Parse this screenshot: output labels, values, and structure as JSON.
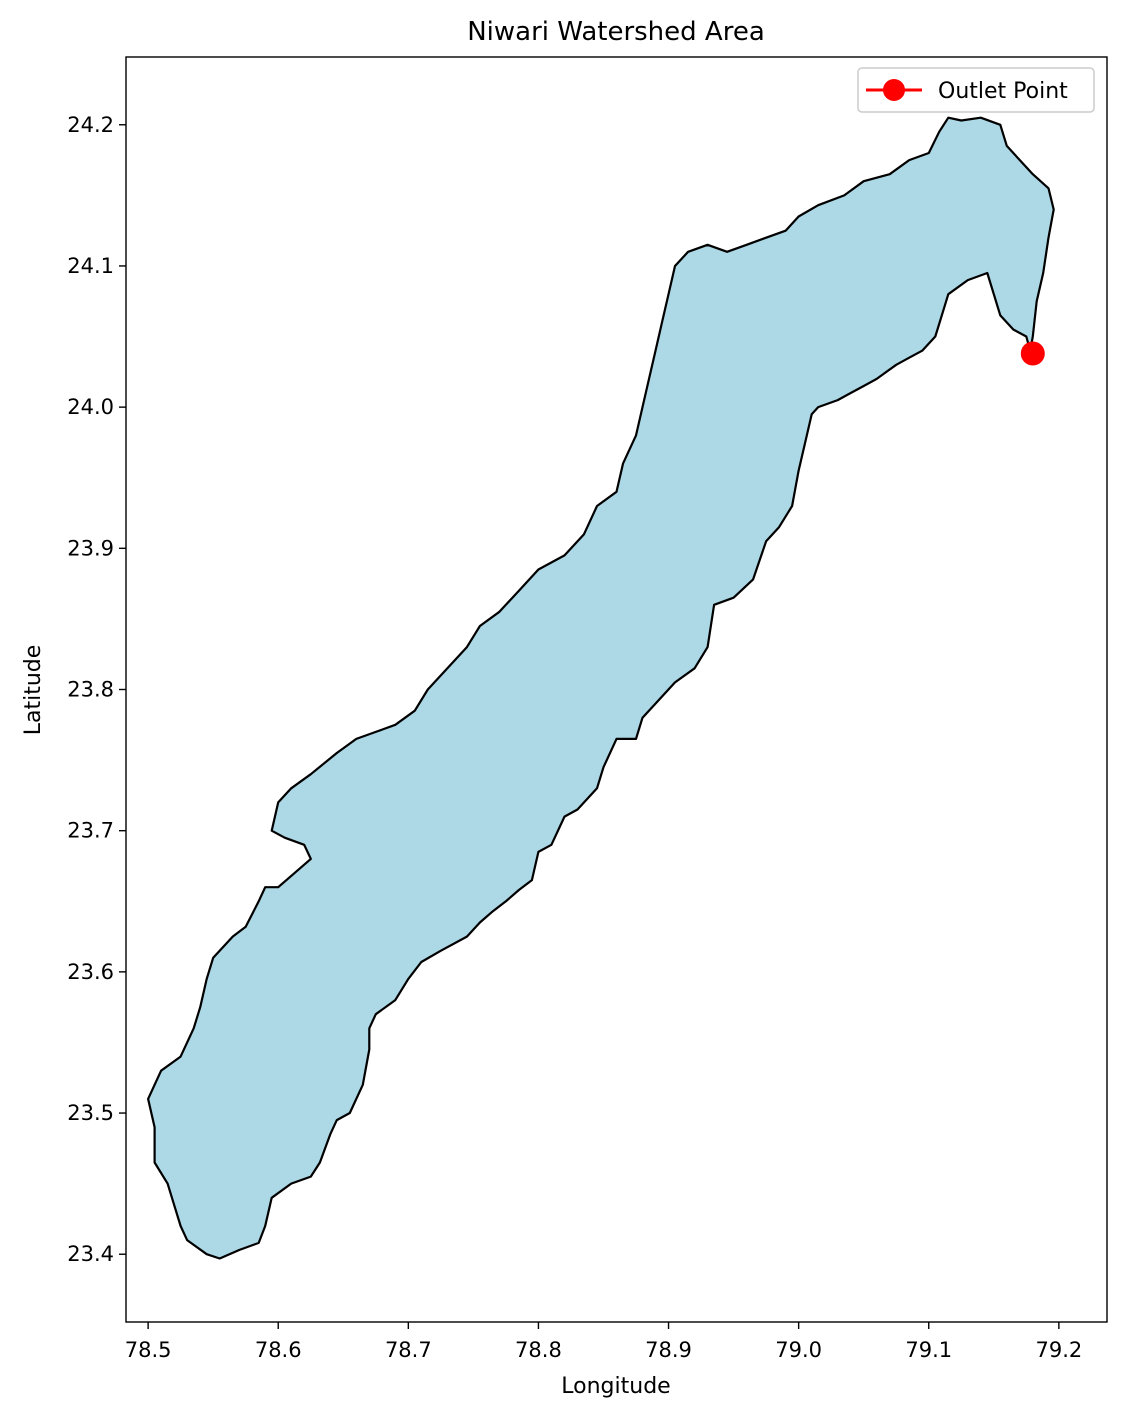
{
  "chart_data": {
    "type": "map",
    "title": "Niwari Watershed Area",
    "xlabel": "Longitude",
    "ylabel": "Latitude",
    "xlim": [
      78.483,
      79.237
    ],
    "ylim": [
      23.352,
      24.248
    ],
    "xticks": [
      78.5,
      78.6,
      78.7,
      78.8,
      78.9,
      79.0,
      79.1,
      79.2
    ],
    "xtick_labels": [
      "78.5",
      "78.6",
      "78.7",
      "78.8",
      "78.9",
      "79.0",
      "79.1",
      "79.2"
    ],
    "yticks": [
      23.4,
      23.5,
      23.6,
      23.7,
      23.8,
      23.9,
      24.0,
      24.1,
      24.2
    ],
    "ytick_labels": [
      "23.4",
      "23.5",
      "23.6",
      "23.7",
      "23.8",
      "23.9",
      "24.0",
      "24.1",
      "24.2"
    ],
    "grid": false,
    "legend_position": "upper right",
    "watershed": {
      "fill_color": "#add8e6",
      "edge_color": "#000000",
      "boundary": [
        [
          78.555,
          23.397
        ],
        [
          78.57,
          23.403
        ],
        [
          78.585,
          23.408
        ],
        [
          78.59,
          23.42
        ],
        [
          78.595,
          23.44
        ],
        [
          78.61,
          23.45
        ],
        [
          78.625,
          23.455
        ],
        [
          78.632,
          23.465
        ],
        [
          78.64,
          23.485
        ],
        [
          78.645,
          23.495
        ],
        [
          78.655,
          23.5
        ],
        [
          78.665,
          23.52
        ],
        [
          78.67,
          23.545
        ],
        [
          78.67,
          23.56
        ],
        [
          78.675,
          23.57
        ],
        [
          78.69,
          23.58
        ],
        [
          78.7,
          23.595
        ],
        [
          78.71,
          23.607
        ],
        [
          78.725,
          23.615
        ],
        [
          78.745,
          23.625
        ],
        [
          78.755,
          23.635
        ],
        [
          78.765,
          23.643
        ],
        [
          78.775,
          23.65
        ],
        [
          78.785,
          23.658
        ],
        [
          78.795,
          23.665
        ],
        [
          78.8,
          23.685
        ],
        [
          78.81,
          23.69
        ],
        [
          78.82,
          23.71
        ],
        [
          78.83,
          23.715
        ],
        [
          78.845,
          23.73
        ],
        [
          78.85,
          23.745
        ],
        [
          78.86,
          23.765
        ],
        [
          78.875,
          23.765
        ],
        [
          78.88,
          23.78
        ],
        [
          78.89,
          23.79
        ],
        [
          78.905,
          23.805
        ],
        [
          78.92,
          23.815
        ],
        [
          78.93,
          23.83
        ],
        [
          78.935,
          23.86
        ],
        [
          78.95,
          23.865
        ],
        [
          78.965,
          23.878
        ],
        [
          78.975,
          23.905
        ],
        [
          78.985,
          23.915
        ],
        [
          78.995,
          23.93
        ],
        [
          79.0,
          23.955
        ],
        [
          79.005,
          23.975
        ],
        [
          79.01,
          23.995
        ],
        [
          79.015,
          24.0
        ],
        [
          79.03,
          24.005
        ],
        [
          79.04,
          24.01
        ],
        [
          79.05,
          24.015
        ],
        [
          79.06,
          24.02
        ],
        [
          79.075,
          24.03
        ],
        [
          79.085,
          24.035
        ],
        [
          79.095,
          24.04
        ],
        [
          79.105,
          24.05
        ],
        [
          79.11,
          24.065
        ],
        [
          79.115,
          24.08
        ],
        [
          79.13,
          24.09
        ],
        [
          79.145,
          24.095
        ],
        [
          79.15,
          24.08
        ],
        [
          79.155,
          24.065
        ],
        [
          79.165,
          24.055
        ],
        [
          79.175,
          24.05
        ],
        [
          79.178,
          24.04
        ],
        [
          79.18,
          24.05
        ],
        [
          79.183,
          24.075
        ],
        [
          79.188,
          24.095
        ],
        [
          79.192,
          24.12
        ],
        [
          79.196,
          24.14
        ],
        [
          79.192,
          24.155
        ],
        [
          79.18,
          24.165
        ],
        [
          79.17,
          24.175
        ],
        [
          79.16,
          24.185
        ],
        [
          79.155,
          24.2
        ],
        [
          79.14,
          24.205
        ],
        [
          79.125,
          24.203
        ],
        [
          79.115,
          24.205
        ],
        [
          79.108,
          24.195
        ],
        [
          79.1,
          24.18
        ],
        [
          79.085,
          24.175
        ],
        [
          79.07,
          24.165
        ],
        [
          79.05,
          24.16
        ],
        [
          79.035,
          24.15
        ],
        [
          79.015,
          24.143
        ],
        [
          79.0,
          24.135
        ],
        [
          78.99,
          24.125
        ],
        [
          78.975,
          24.12
        ],
        [
          78.96,
          24.115
        ],
        [
          78.945,
          24.11
        ],
        [
          78.93,
          24.115
        ],
        [
          78.915,
          24.11
        ],
        [
          78.905,
          24.1
        ],
        [
          78.9,
          24.08
        ],
        [
          78.895,
          24.06
        ],
        [
          78.89,
          24.04
        ],
        [
          78.885,
          24.02
        ],
        [
          78.88,
          24.0
        ],
        [
          78.875,
          23.98
        ],
        [
          78.865,
          23.96
        ],
        [
          78.86,
          23.94
        ],
        [
          78.845,
          23.93
        ],
        [
          78.835,
          23.91
        ],
        [
          78.82,
          23.895
        ],
        [
          78.8,
          23.885
        ],
        [
          78.785,
          23.87
        ],
        [
          78.77,
          23.855
        ],
        [
          78.755,
          23.845
        ],
        [
          78.745,
          23.83
        ],
        [
          78.73,
          23.815
        ],
        [
          78.715,
          23.8
        ],
        [
          78.705,
          23.785
        ],
        [
          78.69,
          23.775
        ],
        [
          78.675,
          23.77
        ],
        [
          78.66,
          23.765
        ],
        [
          78.645,
          23.755
        ],
        [
          78.625,
          23.74
        ],
        [
          78.61,
          23.73
        ],
        [
          78.6,
          23.72
        ],
        [
          78.595,
          23.7
        ],
        [
          78.605,
          23.695
        ],
        [
          78.62,
          23.69
        ],
        [
          78.625,
          23.68
        ],
        [
          78.61,
          23.668
        ],
        [
          78.6,
          23.66
        ],
        [
          78.59,
          23.66
        ],
        [
          78.585,
          23.65
        ],
        [
          78.575,
          23.632
        ],
        [
          78.565,
          23.625
        ],
        [
          78.55,
          23.61
        ],
        [
          78.545,
          23.595
        ],
        [
          78.54,
          23.575
        ],
        [
          78.535,
          23.56
        ],
        [
          78.525,
          23.54
        ],
        [
          78.51,
          23.53
        ],
        [
          78.5,
          23.51
        ],
        [
          78.505,
          23.49
        ],
        [
          78.505,
          23.465
        ],
        [
          78.515,
          23.45
        ],
        [
          78.52,
          23.435
        ],
        [
          78.525,
          23.42
        ],
        [
          78.53,
          23.41
        ],
        [
          78.545,
          23.4
        ],
        [
          78.555,
          23.397
        ]
      ]
    },
    "series": [
      {
        "name": "Outlet Point",
        "color": "#ff0000",
        "marker": "circle",
        "x": [
          79.18
        ],
        "y": [
          24.038
        ]
      }
    ]
  }
}
